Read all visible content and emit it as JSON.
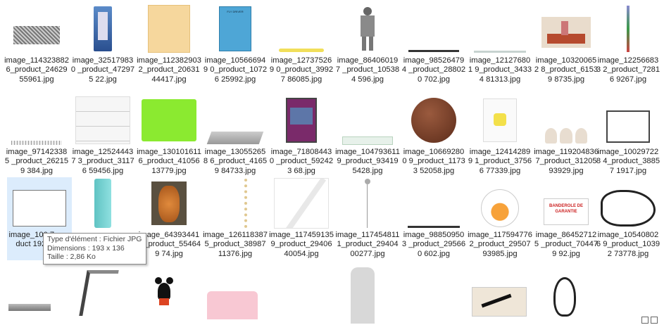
{
  "rows": [
    [
      {
        "label": "image_114323882 6_product_24629 55961.jpg"
      },
      {
        "label": "image_325179830 _product_472975 22.jpg"
      },
      {
        "label": "image_112382903 2_product_20631 44417.jpg"
      },
      {
        "label": "image_105666949 0_product_10726 25992.jpg"
      },
      {
        "label": "image_127375269 0_product_39927 86085.jpg"
      },
      {
        "label": "image_864060197 _product_105384 596.jpg"
      },
      {
        "label": "image_985264794 _product_288020 702.jpg"
      },
      {
        "label": "image_121276801 9_product_34334 81313.jpg"
      },
      {
        "label": "image_103200652 8_product_61539 8735.jpg"
      },
      {
        "label": "image_122566833 2_product_72816 9267.jpg"
      }
    ],
    [
      {
        "label": "image_971423385 _product_262159 384.jpg"
      },
      {
        "label": "image_125244437 3_product_31176 59456.jpg"
      },
      {
        "label": "image_130101611 6_product_41056 13779.jpg"
      },
      {
        "label": "image_130552658 6_product_41659 84733.jpg"
      },
      {
        "label": "image_718084430 _product_592423 68.jpg"
      },
      {
        "label": "image_104793611 9_product_93419 5428.jpg"
      },
      {
        "label": "image_106692800 9_product_11733 52058.jpg"
      },
      {
        "label": "image_124142899 1_product_37566 77339.jpg"
      },
      {
        "label": "image_119204836 7_product_31205 93929.jpg"
      },
      {
        "label": "image_100297228 4_product_38857 1917.jpg"
      }
    ],
    [
      {
        "label": "image_100 7_product 1920.jpg"
      },
      {
        "label": ""
      },
      {
        "label": "image_643934410 _product_554649 74.jpg"
      },
      {
        "label": "image_126118387 5_product_38987 11376.jpg"
      },
      {
        "label": "image_117459135 9_product_29406 40054.jpg"
      },
      {
        "label": "image_117454811 1_product_29404 00277.jpg"
      },
      {
        "label": "image_988509503 _product_295660 602.jpg"
      },
      {
        "label": "image_117594776 2_product_29507 93985.jpg"
      },
      {
        "label": "image_864527125 _product_704479 92.jpg"
      },
      {
        "label": "image_105408026 9_product_10392 73778.jpg"
      }
    ]
  ],
  "thumb_text": {
    "blue_doc_title": "FLY DRIVER",
    "guarantee_tape": "BANDEROLE DE GARANTIE"
  },
  "tooltip": {
    "type": "Type d'élément : Fichier JPG",
    "dimensions": "Dimensions : 193 x 136",
    "size": "Taille : 2,86 Ko"
  }
}
